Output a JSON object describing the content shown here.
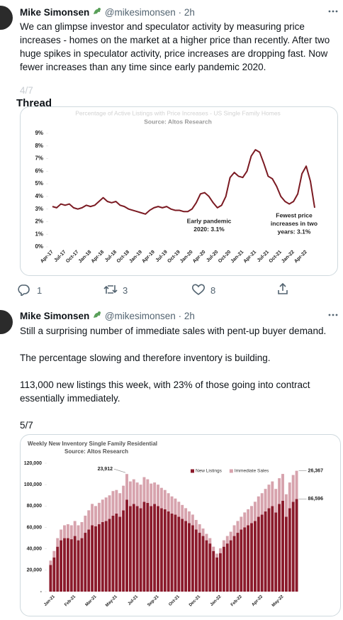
{
  "tweets": [
    {
      "name": "Mike Simonsen",
      "handle": "@mikesimonsen",
      "separator": "·",
      "time": "2h",
      "paragraphs": [
        "We can glimpse investor and speculator activity by measuring price increases - homes on the market at a higher price than recently. After two huge spikes in speculator activity, price increases are dropping fast. Now fewer increases than any time since early pandemic 2020."
      ],
      "counter": "4/7",
      "thread_label": "Thread",
      "replies": 1,
      "retweets": 3,
      "likes": 8
    },
    {
      "name": "Mike Simonsen",
      "handle": "@mikesimonsen",
      "separator": "·",
      "time": "2h",
      "paragraphs": [
        "Still a surprising number of immediate sales with pent-up buyer demand.",
        "The percentage slowing and therefore inventory is building.",
        "113,000 new listings this week, with 23% of those going into contract essentially immediately.",
        "5/7"
      ]
    }
  ],
  "chart_data": [
    {
      "type": "line",
      "title": "Percentage of Active Listings with Price Increases - US Single Family Homes",
      "subtitle": "Source: Altos Research",
      "categories": [
        "Apr-17",
        null,
        null,
        "Jul-17",
        null,
        null,
        "Oct-17",
        null,
        null,
        "Jan-18",
        null,
        null,
        "Apr-18",
        null,
        null,
        "Jul-18",
        null,
        null,
        "Oct-18",
        null,
        null,
        "Jan-19",
        null,
        null,
        "Apr-19",
        null,
        null,
        "Jul-19",
        null,
        null,
        "Oct-19",
        null,
        null,
        "Jan-20",
        null,
        null,
        "Apr-20",
        null,
        null,
        "Jul-20",
        null,
        null,
        "Oct-20",
        null,
        null,
        "Jan-21",
        null,
        null,
        "Apr-21",
        null,
        null,
        "Jul-21",
        null,
        null,
        "Oct-21",
        null,
        null,
        "Jan-22",
        null,
        null,
        "Apr-22",
        null,
        null
      ],
      "values": [
        3.2,
        3.1,
        3.4,
        3.3,
        3.4,
        3.1,
        3.0,
        3.1,
        3.3,
        3.2,
        3.3,
        3.6,
        3.9,
        3.6,
        3.5,
        3.6,
        3.3,
        3.2,
        3.0,
        2.9,
        2.8,
        2.7,
        2.6,
        2.9,
        3.1,
        3.2,
        3.1,
        3.2,
        3.0,
        2.9,
        2.9,
        2.8,
        2.8,
        3.0,
        3.5,
        4.2,
        4.3,
        4.0,
        3.5,
        3.1,
        3.3,
        4.0,
        5.5,
        5.9,
        5.6,
        5.5,
        6.0,
        7.2,
        7.7,
        7.5,
        6.6,
        5.6,
        5.4,
        4.8,
        4.0,
        3.6,
        3.4,
        3.6,
        4.2,
        5.8,
        6.4,
        5.2,
        3.1
      ],
      "color": "#7b1a22",
      "ylim": [
        0,
        9
      ],
      "yticks": [
        {
          "value": 0,
          "label": "0%"
        },
        {
          "value": 1,
          "label": "1%"
        },
        {
          "value": 2,
          "label": "2%"
        },
        {
          "value": 3,
          "label": "3%"
        },
        {
          "value": 4,
          "label": "4%"
        },
        {
          "value": 5,
          "label": "5%"
        },
        {
          "value": 6,
          "label": "6%"
        },
        {
          "value": 7,
          "label": "7%"
        },
        {
          "value": 8,
          "label": "8%"
        },
        {
          "value": 9,
          "label": "9%"
        }
      ],
      "annotations": [
        {
          "lines": [
            "Early pandemic",
            "2020: 3.1%"
          ]
        },
        {
          "lines": [
            "Fewest price",
            "increases in two",
            "years: 3.1%"
          ]
        }
      ]
    },
    {
      "type": "stacked_bar",
      "title": "Weekly New Inventory Single Family Residential",
      "subtitle": "Source: Altos Research",
      "categories": [
        null,
        "Jan-21",
        null,
        null,
        null,
        null,
        null,
        "Feb-21",
        null,
        null,
        null,
        null,
        null,
        "Mar-21",
        null,
        null,
        null,
        null,
        null,
        "May-21",
        null,
        null,
        null,
        null,
        null,
        "Jul-21",
        null,
        null,
        null,
        null,
        null,
        "Sep-21",
        null,
        null,
        null,
        null,
        null,
        "Oct-21",
        null,
        null,
        null,
        null,
        null,
        "Dec-21",
        null,
        null,
        null,
        null,
        null,
        "Jan-22",
        null,
        null,
        null,
        null,
        null,
        "Feb-22",
        null,
        null,
        null,
        null,
        null,
        "Apr-22",
        null,
        null,
        null,
        null,
        null,
        "May-22",
        null,
        null,
        null,
        null
      ],
      "series": [
        {
          "name": "New Listings",
          "color": "#8b1a2b",
          "values": [
            25000,
            32000,
            42000,
            48000,
            50000,
            50000,
            49000,
            52000,
            48000,
            50000,
            55000,
            58000,
            62000,
            61000,
            63000,
            65000,
            66000,
            68000,
            71000,
            73000,
            70000,
            76000,
            86000,
            80000,
            82000,
            80000,
            78000,
            84000,
            83000,
            80000,
            82000,
            80000,
            78000,
            77000,
            75000,
            73000,
            72000,
            70000,
            68000,
            66000,
            64000,
            62000,
            58000,
            55000,
            52000,
            48000,
            45000,
            38000,
            32000,
            36000,
            42000,
            45000,
            48000,
            52000,
            55000,
            58000,
            60000,
            62000,
            64000,
            66000,
            70000,
            72000,
            75000,
            78000,
            80000,
            74000,
            82000,
            85000,
            70000,
            78000,
            84000,
            86596
          ],
          "value_labels": [
            null,
            null,
            null,
            null,
            null,
            null,
            null,
            null,
            null,
            null,
            null,
            null,
            null,
            null,
            null,
            null,
            null,
            null,
            null,
            null,
            null,
            null,
            null,
            null,
            null,
            null,
            null,
            null,
            null,
            null,
            null,
            null,
            null,
            null,
            null,
            null,
            null,
            null,
            null,
            null,
            null,
            null,
            null,
            null,
            null,
            null,
            null,
            null,
            null,
            null,
            null,
            null,
            null,
            null,
            null,
            null,
            null,
            null,
            null,
            null,
            null,
            null,
            null,
            null,
            null,
            null,
            null,
            null,
            null,
            null,
            null,
            "86,596"
          ]
        },
        {
          "name": "Immediate Sales",
          "color": "#d7a3ad",
          "values": [
            4000,
            6000,
            8000,
            10000,
            12000,
            13000,
            13000,
            14000,
            14000,
            15000,
            16000,
            18000,
            20000,
            19000,
            20000,
            21000,
            22000,
            22000,
            23000,
            22000,
            22000,
            23000,
            23912,
            23000,
            23000,
            22000,
            22000,
            23000,
            22000,
            21000,
            20000,
            20000,
            19000,
            18000,
            17000,
            16000,
            15000,
            14000,
            13000,
            12000,
            11000,
            10000,
            9000,
            8000,
            7000,
            6000,
            5000,
            4000,
            3500,
            4500,
            6000,
            7000,
            8000,
            10000,
            11000,
            12000,
            14000,
            15000,
            16000,
            18000,
            19000,
            20000,
            21000,
            22000,
            23000,
            22000,
            24000,
            25000,
            21000,
            24000,
            25000,
            26367
          ],
          "value_labels": [
            null,
            null,
            null,
            null,
            null,
            null,
            null,
            null,
            null,
            null,
            null,
            null,
            null,
            null,
            null,
            null,
            null,
            null,
            null,
            null,
            null,
            null,
            "23,912",
            null,
            null,
            null,
            null,
            null,
            null,
            null,
            null,
            null,
            null,
            null,
            null,
            null,
            null,
            null,
            null,
            null,
            null,
            null,
            null,
            null,
            null,
            null,
            null,
            null,
            null,
            null,
            null,
            null,
            null,
            null,
            null,
            null,
            null,
            null,
            null,
            null,
            null,
            null,
            null,
            null,
            null,
            null,
            null,
            null,
            null,
            null,
            null,
            "26,367"
          ]
        }
      ],
      "ylim": [
        0,
        120000
      ],
      "yticks": [
        {
          "value": 0,
          "label": "-"
        },
        {
          "value": 20000,
          "label": "20,000"
        },
        {
          "value": 40000,
          "label": "40,000"
        },
        {
          "value": 60000,
          "label": "60,000"
        },
        {
          "value": 80000,
          "label": "80,000"
        },
        {
          "value": 100000,
          "label": "100,000"
        },
        {
          "value": 120000,
          "label": "120,000"
        }
      ],
      "legend": "top-right"
    }
  ]
}
